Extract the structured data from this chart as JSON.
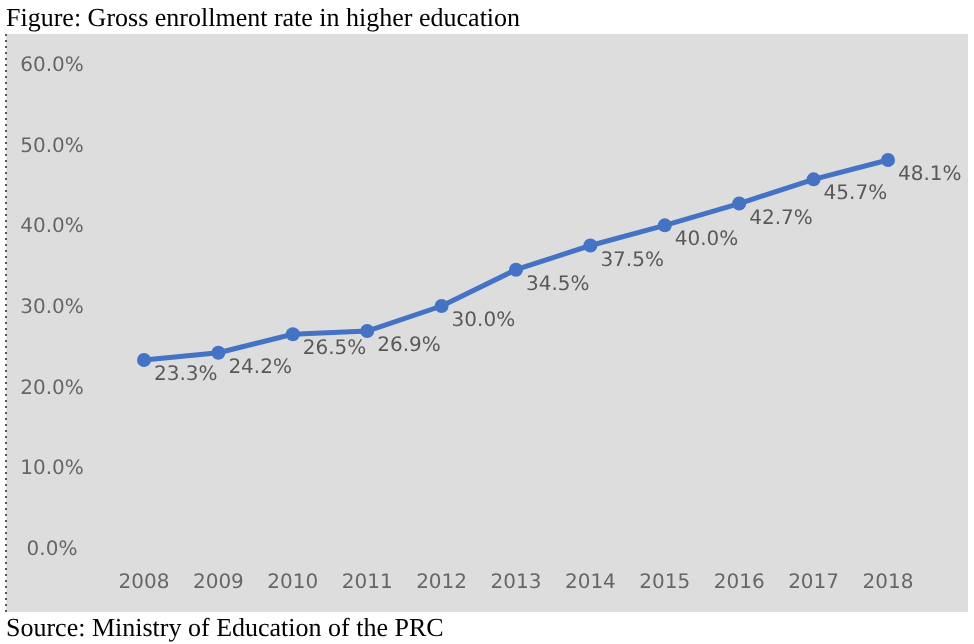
{
  "chart_data": {
    "type": "line",
    "title": "Figure: Gross enrollment rate in higher education",
    "categories": [
      "2008",
      "2009",
      "2010",
      "2011",
      "2012",
      "2013",
      "2014",
      "2015",
      "2016",
      "2017",
      "2018"
    ],
    "series": [
      {
        "color": "#4472c4",
        "values": [
          23.3,
          24.2,
          26.5,
          26.9,
          30.0,
          34.5,
          37.5,
          40.0,
          42.7,
          45.7,
          48.1
        ],
        "value_labels": [
          "23.3%",
          "24.2%",
          "26.5%",
          "26.9%",
          "30.0%",
          "34.5%",
          "37.5%",
          "40.0%",
          "42.7%",
          "45.7%",
          "48.1%"
        ]
      }
    ],
    "ylim": [
      0,
      60
    ],
    "yticks": [
      {
        "value": 0,
        "label": "0.0%"
      },
      {
        "value": 10,
        "label": "10.0%"
      },
      {
        "value": 20,
        "label": "20.0%"
      },
      {
        "value": 30,
        "label": "30.0%"
      },
      {
        "value": 40,
        "label": "40.0%"
      },
      {
        "value": 50,
        "label": "50.0%"
      },
      {
        "value": 60,
        "label": "60.0%"
      }
    ],
    "marker": "circle",
    "line_style": "solid",
    "annotations": [
      "Source: Ministry of Education of the PRC"
    ]
  }
}
